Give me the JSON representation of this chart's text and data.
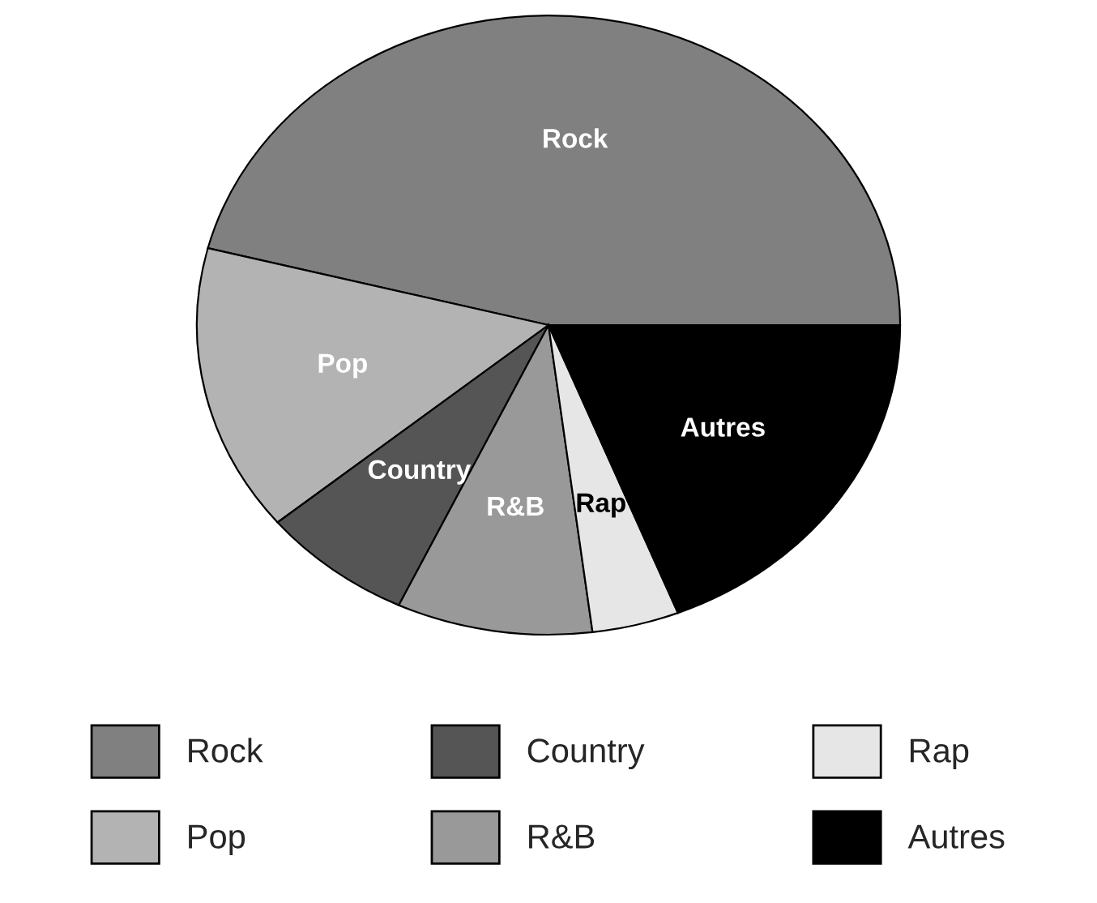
{
  "chart_data": {
    "type": "pie",
    "categories": [
      "Rock",
      "Pop",
      "Country",
      "R&B",
      "Rap",
      "Autres"
    ],
    "values": [
      46,
      15,
      7,
      9,
      4,
      19
    ],
    "colors": [
      "#808080",
      "#b3b3b3",
      "#555555",
      "#999999",
      "#e6e6e6",
      "#000000"
    ],
    "legend": "bottom"
  }
}
